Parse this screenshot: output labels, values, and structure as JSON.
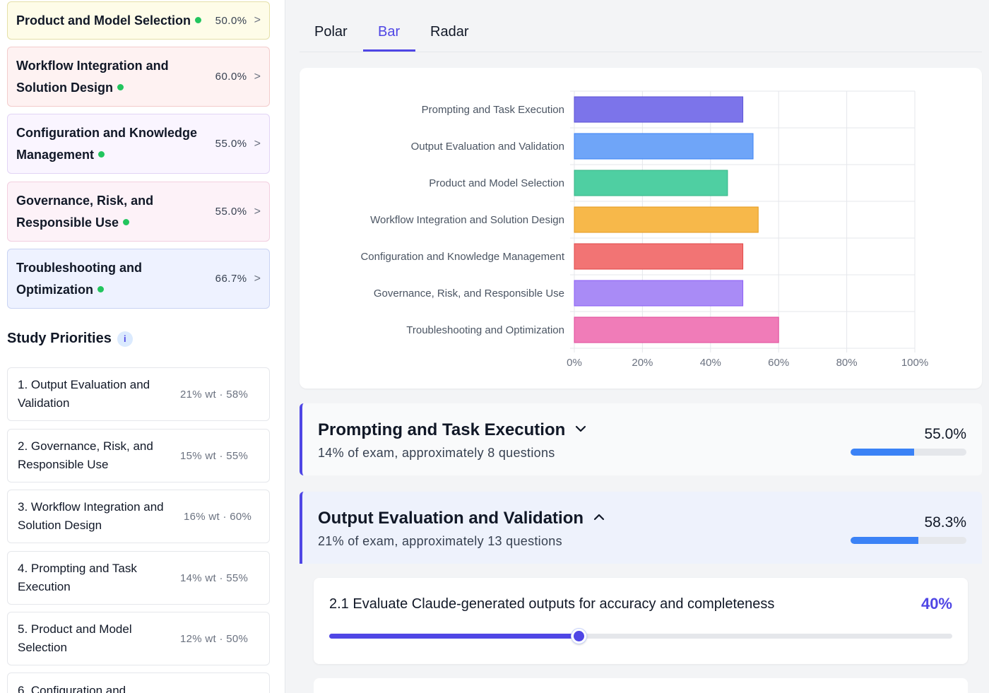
{
  "domains": [
    {
      "name": "Product and Model Selection",
      "pct": "50.0%",
      "bg": "#fefce8",
      "border": "#e5e0a8"
    },
    {
      "name": "Workflow Integration and Solution Design",
      "pct": "60.0%",
      "bg": "#fef2f2",
      "border": "#f3cccc"
    },
    {
      "name": "Configuration and Knowledge Management",
      "pct": "55.0%",
      "bg": "#faf5ff",
      "border": "#e2d4f5"
    },
    {
      "name": "Governance, Risk, and Responsible Use",
      "pct": "55.0%",
      "bg": "#fdf2f8",
      "border": "#f2cfe0"
    },
    {
      "name": "Troubleshooting and Optimization",
      "pct": "66.7%",
      "bg": "#eef2ff",
      "border": "#c9d3f3"
    }
  ],
  "domain_chevron": ">",
  "study": {
    "title": "Study Priorities",
    "info_glyph": "i",
    "items": [
      {
        "name": "1. Output Evaluation and Validation",
        "meta": "21% wt · 58%"
      },
      {
        "name": "2. Governance, Risk, and Responsible Use",
        "meta": "15% wt · 55%"
      },
      {
        "name": "3. Workflow Integration and Solution Design",
        "meta": "16% wt · 60%"
      },
      {
        "name": "4. Prompting and Task Execution",
        "meta": "14% wt · 55%"
      },
      {
        "name": "5. Product and Model Selection",
        "meta": "12% wt · 50%"
      },
      {
        "name": "6. Configuration and",
        "meta": ""
      }
    ]
  },
  "tabs": [
    {
      "label": "Polar"
    },
    {
      "label": "Bar"
    },
    {
      "label": "Radar"
    }
  ],
  "active_tab": "Bar",
  "chart_data": {
    "type": "bar",
    "orientation": "horizontal",
    "categories": [
      "Prompting and Task Execution",
      "Output Evaluation and Validation",
      "Product and Model Selection",
      "Workflow Integration and Solution Design",
      "Configuration and Knowledge Management",
      "Governance, Risk, and Responsible Use",
      "Troubleshooting and Optimization"
    ],
    "values": [
      49.5,
      52.5,
      45,
      54,
      49.5,
      49.5,
      60
    ],
    "colors": [
      "#7c74ea",
      "#6fa5f8",
      "#4fcfa2",
      "#f7b84a",
      "#f27474",
      "#a98bf6",
      "#f07cb8"
    ],
    "strokes": [
      "#5b52d6",
      "#3b82f6",
      "#34b487",
      "#e59a1c",
      "#e04848",
      "#8b5cf6",
      "#e0489a"
    ],
    "xlim": [
      0,
      100
    ],
    "xticks": [
      "0%",
      "20%",
      "40%",
      "60%",
      "80%",
      "100%"
    ],
    "grid": true,
    "title": "",
    "xlabel": "",
    "ylabel": ""
  },
  "sections": [
    {
      "title": "Prompting and Task Execution",
      "subtitle": "14% of exam, approximately 8 questions",
      "pct": "55.0%",
      "fill": 0.55,
      "expanded": false,
      "bg": "#f9fafb"
    },
    {
      "title": "Output Evaluation and Validation",
      "subtitle": "21% of exam, approximately 13 questions",
      "pct": "58.3%",
      "fill": 0.583,
      "expanded": true,
      "bg": "#eef2fc"
    }
  ],
  "subtopic": {
    "title": "2.1 Evaluate Claude-generated outputs for accuracy and completeness",
    "value": "40%",
    "level": 0.4
  }
}
